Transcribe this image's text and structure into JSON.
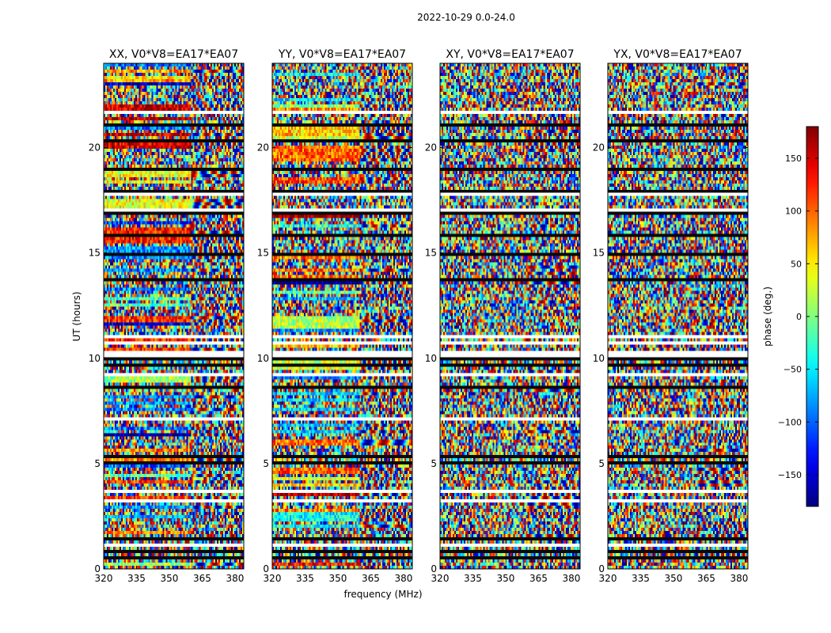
{
  "suptitle": "2022-10-29 0.0-24.0",
  "chart_data": {
    "type": "heatmap",
    "title": "2022-10-29 0.0-24.0",
    "xlabel": "frequency (MHz)",
    "ylabel": "UT (hours)",
    "xlim": [
      320,
      384
    ],
    "ylim": [
      0,
      24
    ],
    "xticks": [
      320,
      335,
      350,
      365,
      380
    ],
    "yticks": [
      0,
      5,
      10,
      15,
      20
    ],
    "panels": [
      {
        "title": "XX, V0*V8=EA17*EA07",
        "pol": "XX"
      },
      {
        "title": "YY, V0*V8=EA17*EA07",
        "pol": "YY"
      },
      {
        "title": "XY, V0*V8=EA17*EA07",
        "pol": "XY"
      },
      {
        "title": "YX, V0*V8=EA17*EA07",
        "pol": "YX"
      }
    ],
    "colorbar": {
      "label": "phase (deg.)",
      "range": [
        -180,
        180
      ],
      "ticks": [
        -150,
        -100,
        -50,
        0,
        50,
        100,
        150
      ],
      "colormap": "jet"
    }
  }
}
